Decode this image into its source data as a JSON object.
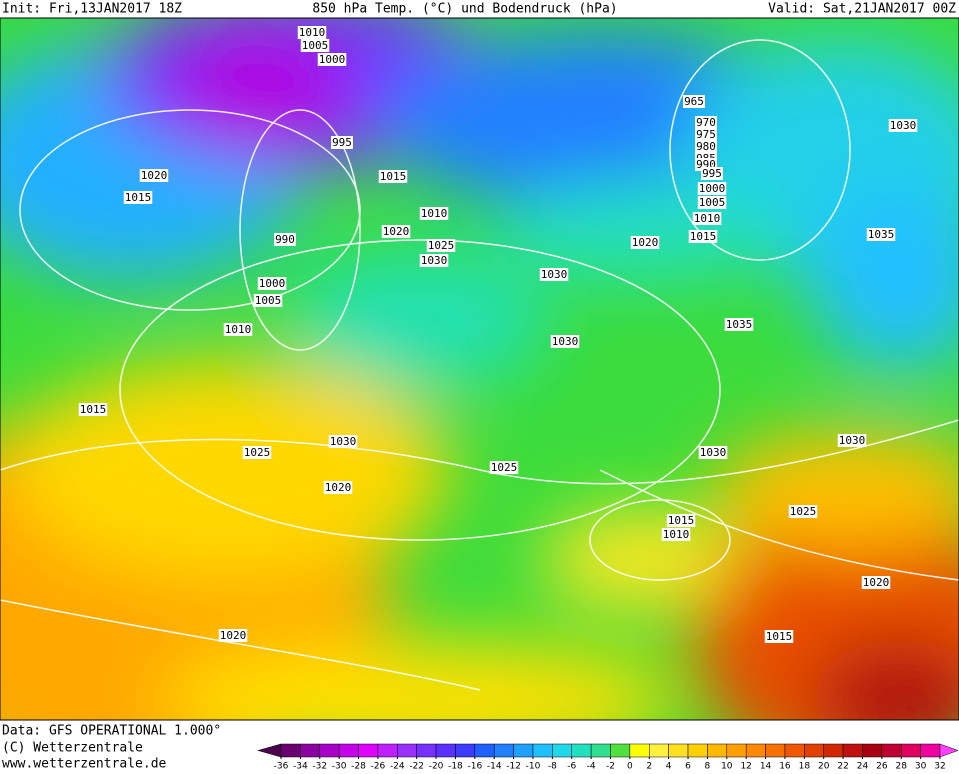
{
  "header": {
    "init": "Init: Fri,13JAN2017 18Z",
    "title": "850 hPa Temp. (°C) und Bodendruck (hPa)",
    "valid": "Valid: Sat,21JAN2017 00Z"
  },
  "footer": {
    "data": "Data: GFS OPERATIONAL 1.000°",
    "copyright": "(C) Wetterzentrale",
    "url": "www.wetterzentrale.de"
  },
  "colorbar": {
    "ticks": [
      -36,
      -34,
      -32,
      -30,
      -28,
      -26,
      -24,
      -22,
      -20,
      -18,
      -16,
      -14,
      -12,
      -10,
      -8,
      -6,
      -4,
      -2,
      0,
      2,
      4,
      6,
      8,
      10,
      12,
      14,
      16,
      18,
      20,
      22,
      24,
      26,
      28,
      30,
      32
    ],
    "colors": [
      "#4b0050",
      "#6a0070",
      "#8a00a0",
      "#a800c8",
      "#c400e8",
      "#e000ff",
      "#c020ff",
      "#9a30ff",
      "#7830ff",
      "#5a30ff",
      "#3c3cff",
      "#2060ff",
      "#2080ff",
      "#20a0ff",
      "#20c0ff",
      "#20d8e8",
      "#20e0c0",
      "#30e090",
      "#50e040",
      "#ffff00",
      "#fff040",
      "#ffe020",
      "#ffd000",
      "#ffb800",
      "#ffa000",
      "#ff8800",
      "#f87000",
      "#f05800",
      "#e04000",
      "#d02800",
      "#c01010",
      "#a80010",
      "#c00030",
      "#e00060",
      "#f000a0",
      "#ff40ff"
    ]
  },
  "isobar_labels": [
    "1010",
    "1005",
    "1000",
    "995",
    "990",
    "1000",
    "1005",
    "1010",
    "1015",
    "1020",
    "1015",
    "1015",
    "1010",
    "1020",
    "1025",
    "1030",
    "1030",
    "1020",
    "1030",
    "1030",
    "1025",
    "1020",
    "1025",
    "1020",
    "965",
    "970",
    "975",
    "980",
    "985",
    "990",
    "995",
    "1000",
    "1005",
    "1010",
    "1015",
    "1030",
    "1035",
    "1035",
    "1030",
    "1030",
    "1025",
    "1015",
    "1010",
    "1020",
    "1015"
  ]
}
